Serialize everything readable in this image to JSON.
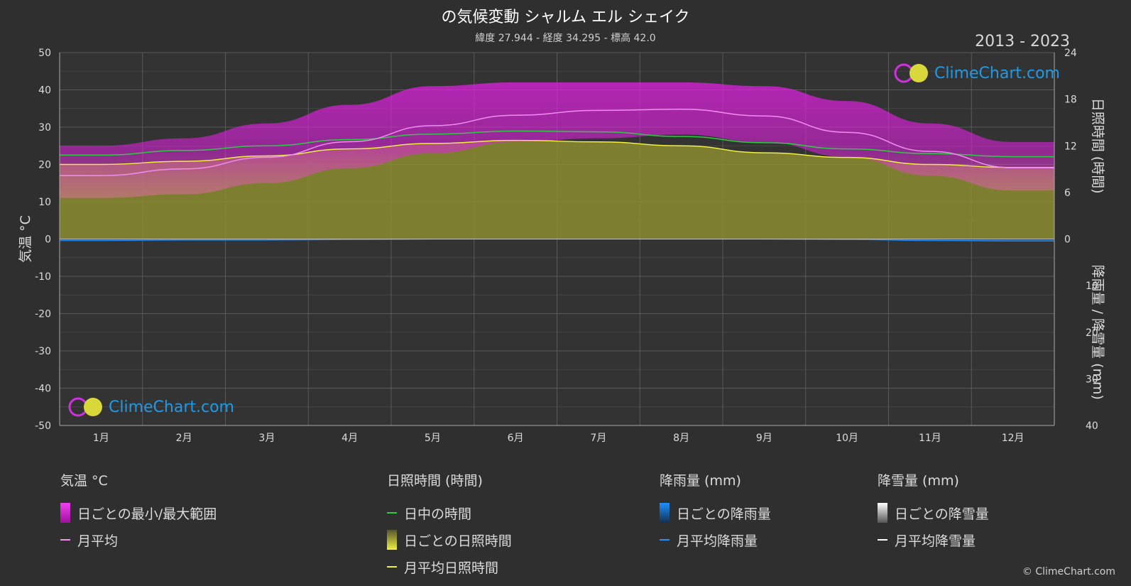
{
  "header": {
    "title": "の気候変動 シャルム エル シェイク",
    "subtitle": "緯度 27.944 - 経度 34.295 - 標高 42.0",
    "years": "2013 - 2023"
  },
  "logo": {
    "text": "ClimeChart.com"
  },
  "copyright": "© ClimeChart.com",
  "colors": {
    "background": "#2f2f2f",
    "temp_range": "#e020e0",
    "temp_avg": "#f08ef0",
    "daylight": "#2ecc40",
    "sunshine_fill": "#9a9a35",
    "sunshine_line": "#f0f040",
    "rain": "#1e90ff",
    "snow": "#ffffff"
  },
  "legend": {
    "temp": {
      "title": "気温 °C",
      "range": "日ごとの最小/最大範囲",
      "avg": "月平均"
    },
    "sun": {
      "title": "日照時間 (時間)",
      "daylight": "日中の時間",
      "daily": "日ごとの日照時間",
      "avg": "月平均日照時間"
    },
    "rain": {
      "title": "降雨量 (mm)",
      "daily": "日ごとの降雨量",
      "avg": "月平均降雨量"
    },
    "snow": {
      "title": "降雪量 (mm)",
      "daily": "日ごとの降雪量",
      "avg": "月平均降雪量"
    }
  },
  "chart_data": {
    "type": "area",
    "categories": [
      "1月",
      "2月",
      "3月",
      "4月",
      "5月",
      "6月",
      "7月",
      "8月",
      "9月",
      "10月",
      "11月",
      "12月"
    ],
    "axes": {
      "left": {
        "label": "気温 °C",
        "range": [
          -50,
          50
        ],
        "ticks": [
          50,
          40,
          30,
          20,
          10,
          0,
          -10,
          -20,
          -30,
          -40,
          -50
        ]
      },
      "right_top": {
        "label": "日照時間 (時間)",
        "range": [
          0,
          24
        ],
        "ticks": [
          24,
          18,
          12,
          6,
          0
        ]
      },
      "right_bottom": {
        "label": "降雨量 / 降雪量 (mm)",
        "range": [
          0,
          40
        ],
        "ticks": [
          10,
          20,
          30,
          40
        ]
      }
    },
    "grid": true,
    "series": [
      {
        "name": "月平均",
        "axis": "left",
        "values": [
          17.0,
          18.8,
          21.9,
          26.1,
          30.4,
          33.2,
          34.5,
          34.8,
          33.0,
          28.6,
          23.5,
          19.1
        ]
      },
      {
        "name": "日ごとの最小/最大範囲",
        "axis": "left",
        "min": [
          11,
          12,
          15,
          19,
          23,
          26,
          27,
          28,
          26,
          22,
          17,
          13
        ],
        "max": [
          25,
          27,
          31,
          36,
          41,
          42,
          42,
          42,
          41,
          37,
          31,
          26
        ]
      },
      {
        "name": "日中の時間",
        "axis": "right_top",
        "values": [
          10.8,
          11.4,
          12.0,
          12.8,
          13.5,
          13.9,
          13.8,
          13.2,
          12.4,
          11.6,
          11.0,
          10.6
        ]
      },
      {
        "name": "月平均日照時間",
        "axis": "right_top",
        "values": [
          9.6,
          10.0,
          10.7,
          11.6,
          12.3,
          12.7,
          12.5,
          12.0,
          11.1,
          10.5,
          9.6,
          9.2
        ]
      },
      {
        "name": "月平均降雨量",
        "axis": "right_bottom",
        "values": [
          0.3,
          0.2,
          0.2,
          0.1,
          0.0,
          0.0,
          0.0,
          0.0,
          0.0,
          0.1,
          0.3,
          0.4
        ]
      },
      {
        "name": "月平均降雪量",
        "axis": "right_bottom",
        "values": [
          0,
          0,
          0,
          0,
          0,
          0,
          0,
          0,
          0,
          0,
          0,
          0
        ]
      }
    ]
  }
}
